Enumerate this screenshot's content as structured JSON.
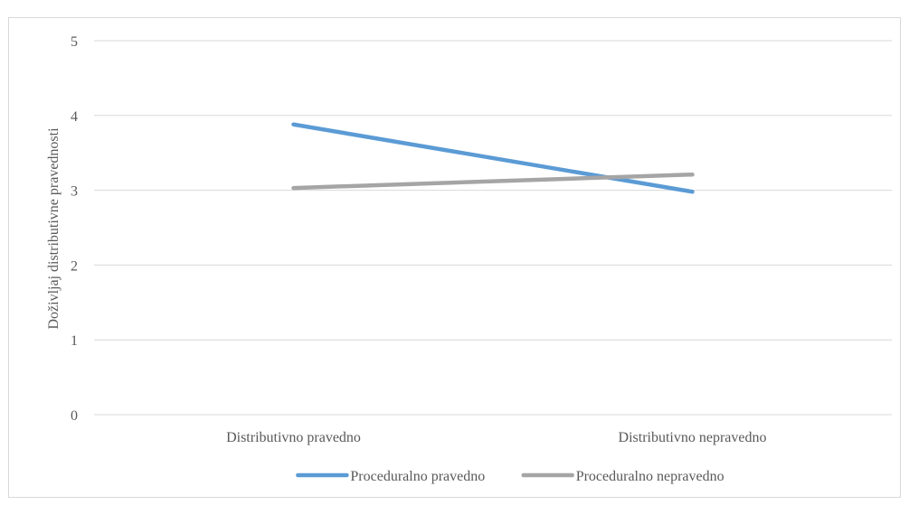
{
  "chart_data": {
    "type": "line",
    "title": "",
    "xlabel": "",
    "ylabel": "Doživljaj distributivne pravednosti",
    "categories": [
      "Distributivno pravedno",
      "Distributivno nepravedno"
    ],
    "ylim": [
      0,
      5
    ],
    "yticks": [
      0,
      1,
      2,
      3,
      4,
      5
    ],
    "grid": true,
    "legend_position": "bottom",
    "series": [
      {
        "name": "Proceduralno pravedno",
        "values": [
          3.88,
          2.98
        ],
        "color": "#5b9bd5"
      },
      {
        "name": "Proceduralno nepravedno",
        "values": [
          3.03,
          3.21
        ],
        "color": "#a5a5a5"
      }
    ]
  }
}
